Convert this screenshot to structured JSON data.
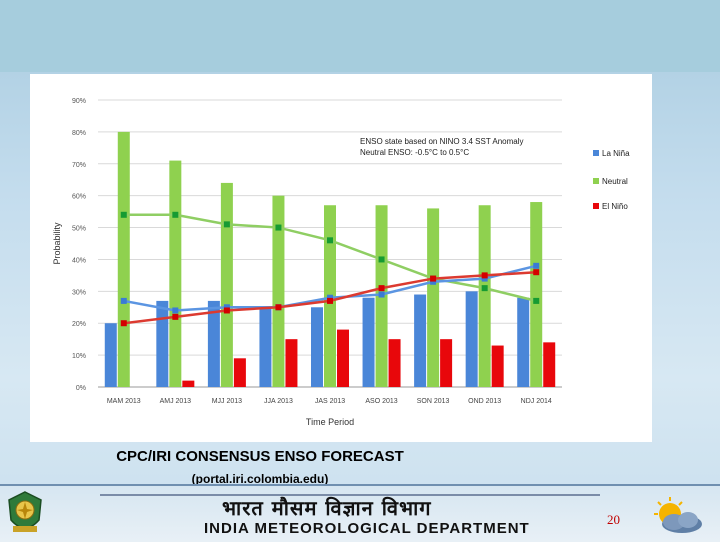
{
  "caption": {
    "title": "CPC/IRI CONSENSUS ENSO FORECAST",
    "subtitle": "(portal.iri.colombia.edu)"
  },
  "footer": {
    "hindi_title": "भारत मौसम विज्ञान विभाग",
    "department": "INDIA METEOROLOGICAL DEPARTMENT",
    "page_number": "20"
  },
  "colors": {
    "la_nina": "#4a86d8",
    "neutral": "#8fd14f",
    "el_nino": "#e8070b",
    "neutral_line": "#8fce63",
    "la_nina_line": "#5b95e2",
    "el_nino_line": "#dc3a30",
    "neutral_marker": "#169b32",
    "la_nina_marker": "#3a7bd5",
    "el_nino_marker": "#d40000"
  },
  "chart_data": {
    "type": "bar",
    "title": "",
    "xlabel": "Time Period",
    "ylabel": "Probability",
    "ylim": [
      0,
      90
    ],
    "yticks": [
      "0%",
      "10%",
      "20%",
      "30%",
      "40%",
      "50%",
      "60%",
      "70%",
      "80%",
      "90%"
    ],
    "categories": [
      "MAM 2013",
      "AMJ 2013",
      "MJJ 2013",
      "JJA 2013",
      "JAS 2013",
      "ASO 2013",
      "SON 2013",
      "OND 2013",
      "NDJ 2014"
    ],
    "annotation": [
      "ENSO state based on NINO 3.4 SST Anomaly",
      "Neutral ENSO: -0.5°C to 0.5°C"
    ],
    "legend_position": "right",
    "series": [
      {
        "name": "La Niña",
        "values": [
          20,
          27,
          27,
          25,
          25,
          28,
          29,
          30,
          28
        ]
      },
      {
        "name": "Neutral",
        "values": [
          80,
          71,
          64,
          60,
          57,
          57,
          56,
          57,
          58
        ]
      },
      {
        "name": "El Niño",
        "values": [
          0,
          2,
          9,
          15,
          18,
          15,
          15,
          13,
          14
        ]
      }
    ],
    "lines": [
      {
        "name": "Neutral",
        "values": [
          54,
          54,
          51,
          50,
          46,
          40,
          34,
          31,
          27
        ]
      },
      {
        "name": "La Niña",
        "values": [
          27,
          24,
          25,
          25,
          28,
          29,
          33,
          34,
          38
        ]
      },
      {
        "name": "El Niño",
        "values": [
          20,
          22,
          24,
          25,
          27,
          31,
          34,
          35,
          36
        ]
      }
    ]
  }
}
